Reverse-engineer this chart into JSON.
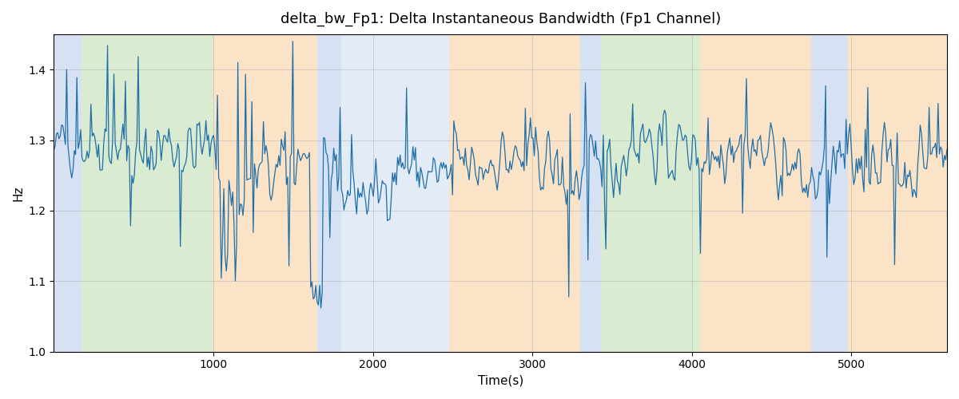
{
  "title": "delta_bw_Fp1: Delta Instantaneous Bandwidth (Fp1 Channel)",
  "xlabel": "Time(s)",
  "ylabel": "Hz",
  "xlim": [
    0,
    5600
  ],
  "ylim": [
    1.0,
    1.45
  ],
  "yticks": [
    1.0,
    1.1,
    1.2,
    1.3,
    1.4
  ],
  "xticks": [
    1000,
    2000,
    3000,
    4000,
    5000
  ],
  "line_color": "#1f6fa8",
  "line_width": 0.9,
  "seed": 42,
  "n_points": 700,
  "background_regions": [
    {
      "xmin": 0,
      "xmax": 175,
      "color": "#aec6e8",
      "alpha": 0.5
    },
    {
      "xmin": 175,
      "xmax": 1000,
      "color": "#b5d9a3",
      "alpha": 0.5
    },
    {
      "xmin": 1000,
      "xmax": 1650,
      "color": "#f9c990",
      "alpha": 0.5
    },
    {
      "xmin": 1650,
      "xmax": 1800,
      "color": "#aec6e8",
      "alpha": 0.5
    },
    {
      "xmin": 1800,
      "xmax": 2480,
      "color": "#aec6e8",
      "alpha": 0.35
    },
    {
      "xmin": 2480,
      "xmax": 3300,
      "color": "#f9c990",
      "alpha": 0.5
    },
    {
      "xmin": 3300,
      "xmax": 3430,
      "color": "#aec6e8",
      "alpha": 0.5
    },
    {
      "xmin": 3430,
      "xmax": 4050,
      "color": "#b5d9a3",
      "alpha": 0.5
    },
    {
      "xmin": 4050,
      "xmax": 4750,
      "color": "#f9c990",
      "alpha": 0.5
    },
    {
      "xmin": 4750,
      "xmax": 4980,
      "color": "#aec6e8",
      "alpha": 0.5
    },
    {
      "xmin": 4980,
      "xmax": 5600,
      "color": "#f9c990",
      "alpha": 0.5
    }
  ],
  "grid_color": "#b0b0b0",
  "grid_alpha": 0.7,
  "grid_linewidth": 0.5,
  "figsize": [
    12.0,
    5.0
  ],
  "dpi": 100
}
